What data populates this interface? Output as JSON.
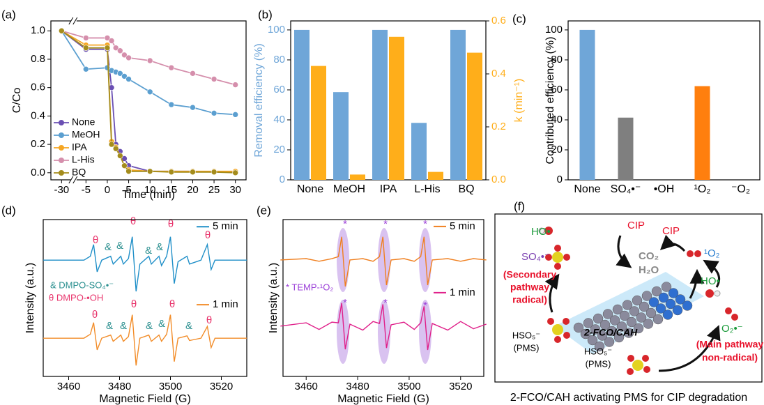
{
  "chart_data": [
    {
      "type": "line",
      "label": "(a)",
      "xlabel": "Time (min)",
      "ylabel": "C/Co",
      "x": [
        -30,
        -5,
        0,
        1,
        2,
        3,
        4,
        5,
        10,
        15,
        20,
        25,
        30
      ],
      "xlim": [
        -32.5,
        32.5
      ],
      "xticks": [
        -30,
        -5,
        0,
        5,
        10,
        15,
        20,
        25,
        30
      ],
      "x_break": true,
      "ylim": [
        -0.05,
        1.07
      ],
      "yticks": [
        {
          "value": 0,
          "label": "0.0"
        },
        {
          "value": 0.2,
          "label": "0.2"
        },
        {
          "value": 0.4,
          "label": "0.4"
        },
        {
          "value": 0.6,
          "label": "0.6"
        },
        {
          "value": 0.8,
          "label": "0.8"
        },
        {
          "value": 1,
          "label": "1.0"
        }
      ],
      "marker": "o",
      "legend": "lower left",
      "series": [
        {
          "name": "None",
          "color": "#6a4fb3",
          "values": [
            1.0,
            0.87,
            0.87,
            0.6,
            0.2,
            0.15,
            0.1,
            0.05,
            0.01,
            0.01,
            0.01,
            0.005,
            0.005
          ]
        },
        {
          "name": "MeOH",
          "color": "#5b9fd0",
          "values": [
            1.0,
            0.73,
            0.74,
            0.72,
            0.71,
            0.7,
            0.68,
            0.66,
            0.57,
            0.48,
            0.46,
            0.42,
            0.41
          ]
        },
        {
          "name": "IPA",
          "color": "#f5a623",
          "values": [
            1.0,
            0.9,
            0.9,
            0.22,
            0.18,
            0.12,
            0.05,
            0.02,
            0.01,
            0.01,
            0.01,
            0.01,
            0.01
          ]
        },
        {
          "name": "L-His",
          "color": "#d58fac",
          "values": [
            1.0,
            0.95,
            0.95,
            0.93,
            0.88,
            0.86,
            0.83,
            0.81,
            0.79,
            0.74,
            0.7,
            0.66,
            0.62
          ]
        },
        {
          "name": "BQ",
          "color": "#a48c1c",
          "values": [
            1.0,
            0.88,
            0.88,
            0.2,
            0.17,
            0.12,
            0.05,
            0.01,
            0.01,
            0.005,
            0.005,
            0.005,
            0.0
          ]
        }
      ]
    },
    {
      "type": "bar",
      "label": "(b)",
      "ylabel": "Removal efficiency (%)",
      "y2label": "k (min⁻¹)",
      "categories": [
        "None",
        "MeOH",
        "IPA",
        "L-His",
        "BQ"
      ],
      "ylim": [
        0,
        106
      ],
      "yticks": [
        0,
        20,
        40,
        60,
        80,
        100
      ],
      "y2lim": [
        0,
        0.6
      ],
      "y2ticks": [
        {
          "value": 0,
          "label": "0.0"
        },
        {
          "value": 0.2,
          "label": "0.2"
        },
        {
          "value": 0.4,
          "label": "0.4"
        },
        {
          "value": 0.6,
          "label": "0.6"
        }
      ],
      "series": [
        {
          "color": "#6fa6d8",
          "values": [
            100,
            58.5,
            100,
            38,
            100
          ]
        },
        {
          "color": "#ffae1a",
          "values": [
            0.43,
            0.02,
            0.54,
            0.03,
            0.48
          ],
          "axis": "y2"
        }
      ]
    },
    {
      "type": "bar",
      "label": "(c)",
      "ylabel": "Contributed efficiency (%)",
      "categories": [
        "None",
        "SO₄•⁻",
        "•OH",
        "¹O₂",
        "⁻O₂"
      ],
      "ylim": [
        0,
        106
      ],
      "yticks": [
        0,
        20,
        40,
        60,
        80,
        100
      ],
      "colors": [
        "#6fa6d8",
        "#7f7f7f",
        "#6fa6d8",
        "#ff7f0e",
        "#6fa6d8"
      ],
      "series": [
        {
          "values": [
            100,
            41.5,
            0,
            62.5,
            0
          ]
        }
      ]
    },
    {
      "type": "line",
      "label": "(d)",
      "xlabel": "Magnetic Field (G)",
      "ylabel": "Intensity (a.u.)",
      "x": [
        3450,
        3466,
        3468.5,
        3469.8,
        3471.2,
        3473,
        3476.5,
        3477.5,
        3480.5,
        3481.5,
        3483.5,
        3485,
        3486.5,
        3488,
        3491.5,
        3492.5,
        3495.5,
        3496.5,
        3498.5,
        3500,
        3501.5,
        3503,
        3506.5,
        3507.5,
        3512,
        3514.5,
        3516,
        3517.5,
        3530
      ],
      "xlim": [
        3450,
        3530
      ],
      "xticks": [
        3460,
        3480,
        3500,
        3520
      ],
      "ylim": [
        -0.49,
        1.52
      ],
      "legend": "upper right",
      "series": [
        {
          "name": "5 min",
          "color": "#1f8fc8",
          "values": [
            1.0,
            1.0,
            1.05,
            1.2,
            0.85,
            1.0,
            1.05,
            0.95,
            1.05,
            0.95,
            1.02,
            1.3,
            0.6,
            0.95,
            1.05,
            0.95,
            1.05,
            0.93,
            1.05,
            1.3,
            0.7,
            0.98,
            1.05,
            0.95,
            1.0,
            1.2,
            0.88,
            1.0,
            1.0
          ]
        },
        {
          "name": "1 min",
          "color": "#f28c28",
          "values": [
            0,
            0,
            0.05,
            0.2,
            -0.15,
            0,
            0.04,
            -0.04,
            0.04,
            -0.04,
            0.02,
            0.3,
            -0.35,
            0,
            0.04,
            -0.04,
            0.04,
            -0.04,
            0.05,
            0.3,
            -0.3,
            0,
            0.03,
            -0.03,
            0,
            0.15,
            -0.12,
            0,
            0
          ]
        }
      ],
      "notes": [
        "& DMPO-SO₄•⁻",
        "θ DMPO-•OH"
      ],
      "markers": [
        "θ",
        "θ",
        "θ",
        "θ",
        "θ",
        "θ",
        "θ",
        "θ",
        "&",
        "&",
        "&",
        "&",
        "&",
        "&",
        "&",
        "&",
        "&"
      ]
    },
    {
      "type": "line",
      "label": "(e)",
      "xlabel": "Magnetic Field (G)",
      "ylabel": "Intensity (a.u.)",
      "x": [
        3450,
        3460,
        3465,
        3470,
        3472.5,
        3473.8,
        3475.2,
        3477,
        3482,
        3486,
        3488.5,
        3489.8,
        3491.2,
        3493,
        3498,
        3502,
        3504.5,
        3505.8,
        3507.2,
        3509,
        3515,
        3520,
        3525,
        3530
      ],
      "xlim": [
        3451,
        3529
      ],
      "xticks": [
        3460,
        3480,
        3500,
        3520
      ],
      "ylim": [
        -0.76,
        1.61
      ],
      "legend": "upper right",
      "series": [
        {
          "name": "5 min",
          "color": "#f07f1e",
          "values": [
            1.0,
            1.02,
            0.98,
            1.02,
            1.05,
            1.35,
            0.6,
            1.0,
            1.02,
            0.98,
            1.05,
            1.35,
            0.62,
            1.0,
            1.02,
            0.98,
            1.05,
            1.35,
            0.62,
            1.0,
            1.02,
            0.98,
            1.02,
            1.0
          ]
        },
        {
          "name": "1 min",
          "color": "#e0208a",
          "values": [
            0,
            0.05,
            -0.05,
            0.06,
            0.05,
            0.35,
            -0.35,
            0.03,
            -0.06,
            0.07,
            0.04,
            0.33,
            -0.33,
            0.02,
            0.06,
            -0.05,
            0.05,
            0.3,
            -0.36,
            0.04,
            -0.06,
            0.07,
            -0.04,
            0.03
          ]
        }
      ],
      "notes": [
        "* TEMP-¹O₂"
      ],
      "markers": [
        "*",
        "*",
        "*",
        "*",
        "*",
        "*"
      ]
    }
  ],
  "diagram": {
    "label": "(f)",
    "caption": "2-FCO/CAH activating PMS for CIP degradation",
    "labels": [
      "HO•",
      "CIP",
      "CIP",
      "SO₄•⁻",
      "CO₂",
      "H₂O",
      "¹O₂",
      "HO•",
      "(Secondary",
      "pathway",
      "radical)",
      "2-FCO/CAH",
      "HSO₅⁻",
      "(PMS)",
      "HSO₅⁻",
      "(PMS)",
      "O₂•⁻",
      "(Main pathway",
      "non-radical)"
    ]
  }
}
